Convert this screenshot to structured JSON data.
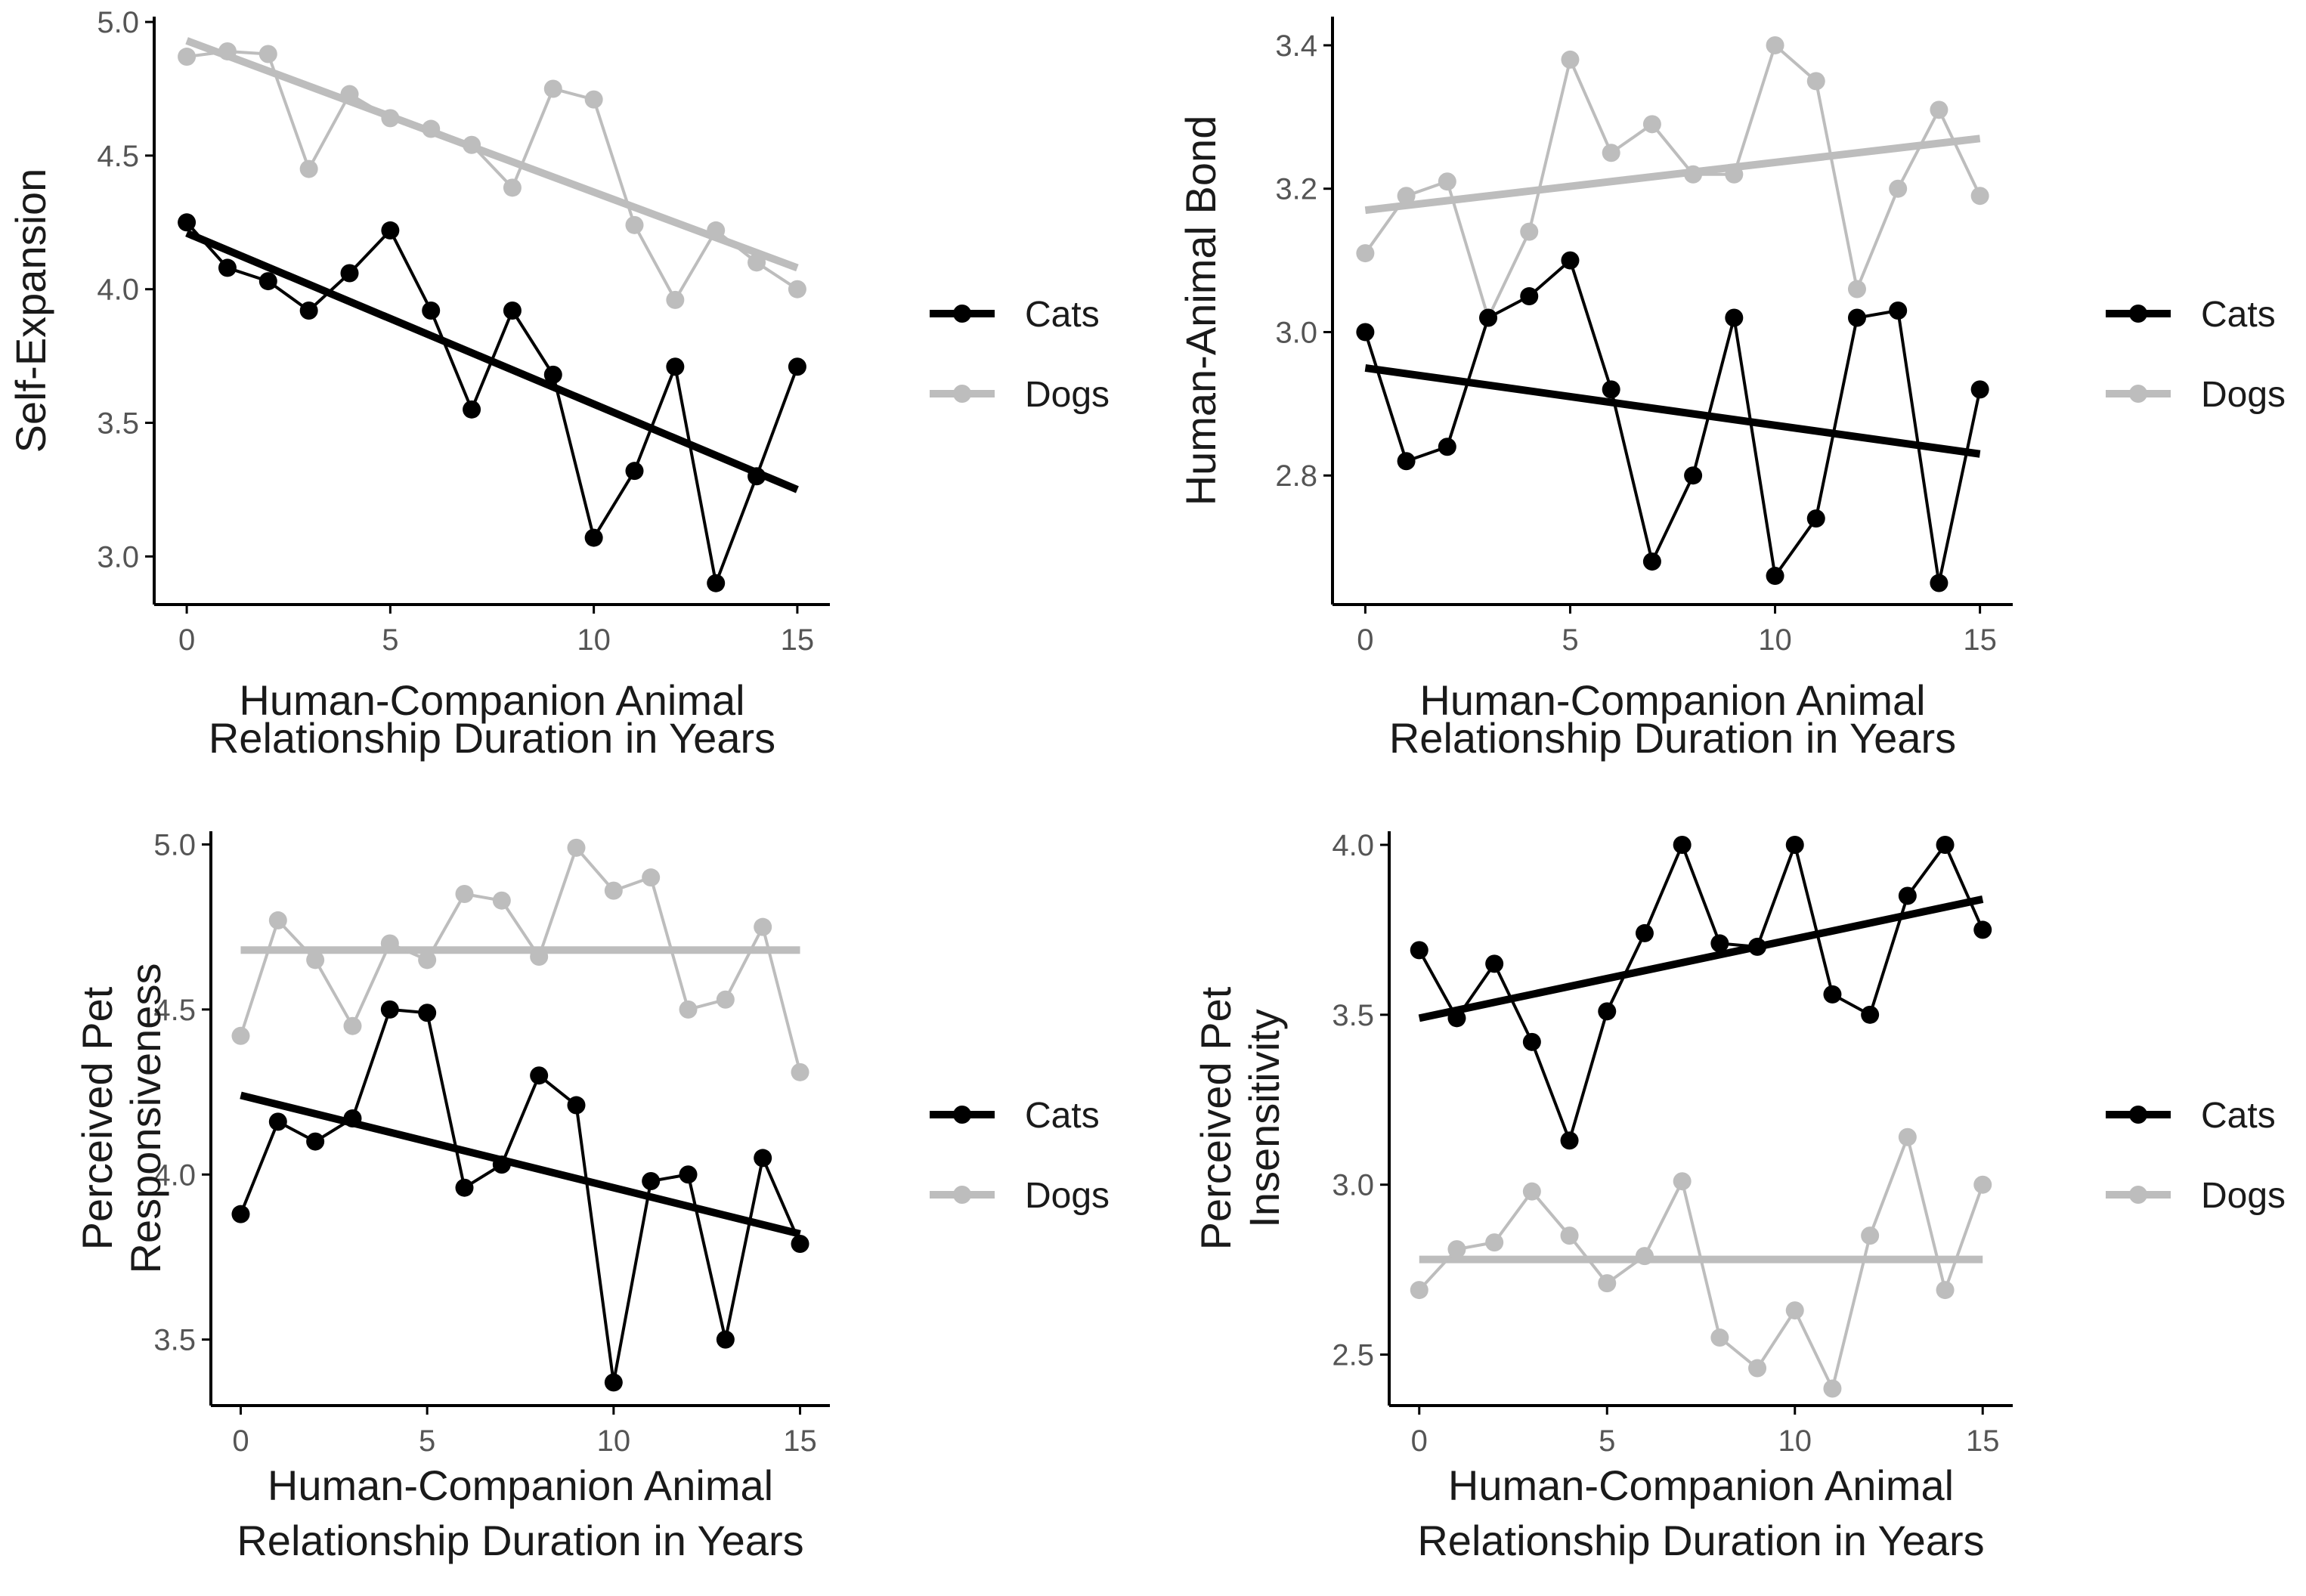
{
  "figure": {
    "legend_cats": "Cats",
    "legend_dogs": "Dogs",
    "colors": {
      "cats": "#000000",
      "dogs": "#bdbdbd",
      "axis": "#000000",
      "tick_text": "#555555"
    }
  },
  "chart_data": [
    {
      "type": "line",
      "title": "",
      "xlabel": [
        "Human-Companion Animal",
        "Relationship Duration in Years"
      ],
      "ylabel": [
        "Self-Expansion"
      ],
      "xlim": [
        -0.8,
        15.8
      ],
      "ylim": [
        2.82,
        5.02
      ],
      "xticks": [
        0,
        5,
        10,
        15
      ],
      "yticks": [
        3.0,
        3.5,
        4.0,
        4.5,
        5.0
      ],
      "yticklabels": [
        "3.0",
        "3.5",
        "4.0",
        "4.5",
        "5.0"
      ],
      "x": [
        0,
        1,
        2,
        3,
        4,
        5,
        6,
        7,
        8,
        9,
        10,
        11,
        12,
        13,
        14,
        15
      ],
      "legend": [
        "Cats",
        "Dogs"
      ],
      "series": [
        {
          "name": "Cats",
          "values": [
            4.25,
            4.08,
            4.03,
            3.92,
            4.06,
            4.22,
            3.92,
            3.55,
            3.92,
            3.68,
            3.07,
            3.32,
            3.71,
            2.9,
            3.3,
            3.71
          ],
          "trend": [
            4.21,
            3.25
          ]
        },
        {
          "name": "Dogs",
          "values": [
            4.87,
            4.89,
            4.88,
            4.45,
            4.73,
            4.64,
            4.6,
            4.54,
            4.38,
            4.75,
            4.71,
            4.24,
            3.96,
            4.22,
            4.1,
            4.0
          ],
          "trend": [
            4.93,
            4.08
          ]
        }
      ]
    },
    {
      "type": "line",
      "title": "",
      "xlabel": [
        "Human-Companion Animal",
        "Relationship Duration in Years"
      ],
      "ylabel": [
        "Human-Animal Bond"
      ],
      "xlim": [
        -0.8,
        15.8
      ],
      "ylim": [
        2.62,
        3.44
      ],
      "xticks": [
        0,
        5,
        10,
        15
      ],
      "yticks": [
        2.8,
        3.0,
        3.2,
        3.4
      ],
      "yticklabels": [
        "2.8",
        "3.0",
        "3.2",
        "3.4"
      ],
      "x": [
        0,
        1,
        2,
        3,
        4,
        5,
        6,
        7,
        8,
        9,
        10,
        11,
        12,
        13,
        14,
        15
      ],
      "legend": [
        "Cats",
        "Dogs"
      ],
      "series": [
        {
          "name": "Cats",
          "values": [
            3.0,
            2.82,
            2.84,
            3.02,
            3.05,
            3.1,
            2.92,
            2.68,
            2.8,
            3.02,
            2.66,
            2.74,
            3.02,
            3.03,
            2.65,
            2.92
          ],
          "trend": [
            2.95,
            2.83
          ]
        },
        {
          "name": "Dogs",
          "values": [
            3.11,
            3.19,
            3.21,
            3.02,
            3.14,
            3.38,
            3.25,
            3.29,
            3.22,
            3.22,
            3.4,
            3.35,
            3.06,
            3.2,
            3.31,
            3.19
          ],
          "trend": [
            3.17,
            3.27
          ]
        }
      ]
    },
    {
      "type": "line",
      "title": "",
      "xlabel": [
        "Human-Companion Animal",
        "Relationship Duration in Years"
      ],
      "ylabel": [
        "Perceived Pet",
        "Responsiveness"
      ],
      "xlim": [
        -0.8,
        15.8
      ],
      "ylim": [
        3.3,
        5.04
      ],
      "xticks": [
        0,
        5,
        10,
        15
      ],
      "yticks": [
        3.5,
        4.0,
        4.5,
        5.0
      ],
      "yticklabels": [
        "3.5",
        "4.0",
        "4.5",
        "5.0"
      ],
      "x": [
        0,
        1,
        2,
        3,
        4,
        5,
        6,
        7,
        8,
        9,
        10,
        11,
        12,
        13,
        14,
        15
      ],
      "legend": [
        "Cats",
        "Dogs"
      ],
      "series": [
        {
          "name": "Cats",
          "values": [
            3.88,
            4.16,
            4.1,
            4.17,
            4.5,
            4.49,
            3.96,
            4.03,
            4.3,
            4.21,
            3.37,
            3.98,
            4.0,
            3.5,
            4.05,
            3.79
          ],
          "trend": [
            4.24,
            3.82
          ]
        },
        {
          "name": "Dogs",
          "values": [
            4.42,
            4.77,
            4.65,
            4.45,
            4.7,
            4.65,
            4.85,
            4.83,
            4.66,
            4.99,
            4.86,
            4.9,
            4.5,
            4.53,
            4.75,
            4.31
          ],
          "trend": [
            4.68,
            4.68
          ]
        }
      ]
    },
    {
      "type": "line",
      "title": "",
      "xlabel": [
        "Human-Companion Animal",
        "Relationship Duration in Years"
      ],
      "ylabel": [
        "Perceived Pet",
        "Insensitivity"
      ],
      "xlim": [
        -0.8,
        15.8
      ],
      "ylim": [
        2.35,
        4.04
      ],
      "xticks": [
        0,
        5,
        10,
        15
      ],
      "yticks": [
        2.5,
        3.0,
        3.5,
        4.0
      ],
      "yticklabels": [
        "2.5",
        "3.0",
        "3.5",
        "4.0"
      ],
      "x": [
        0,
        1,
        2,
        3,
        4,
        5,
        6,
        7,
        8,
        9,
        10,
        11,
        12,
        13,
        14,
        15
      ],
      "legend": [
        "Cats",
        "Dogs"
      ],
      "series": [
        {
          "name": "Cats",
          "values": [
            3.69,
            3.49,
            3.65,
            3.42,
            3.13,
            3.51,
            3.74,
            4.0,
            3.71,
            3.7,
            4.0,
            3.56,
            3.5,
            3.85,
            4.0,
            3.75
          ],
          "trend": [
            3.49,
            3.84
          ]
        },
        {
          "name": "Dogs",
          "values": [
            2.69,
            2.81,
            2.83,
            2.98,
            2.85,
            2.71,
            2.79,
            3.01,
            2.55,
            2.46,
            2.63,
            2.4,
            2.85,
            3.14,
            2.69,
            3.0
          ],
          "trend": [
            2.78,
            2.78
          ]
        }
      ]
    }
  ]
}
